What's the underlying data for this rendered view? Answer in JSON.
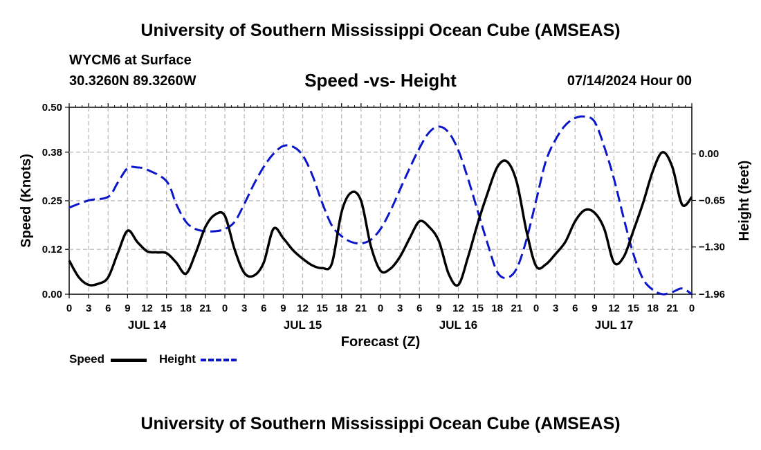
{
  "page": {
    "title": "University of Southern Mississippi Ocean Cube (AMSEAS)",
    "footer_title": "University of Southern Mississippi Ocean Cube (AMSEAS)",
    "station": "WYCM6 at Surface",
    "latlon": "30.3260N  89.3260W",
    "subtitle": "Speed -vs- Height",
    "datetime": "07/14/2024 Hour 00"
  },
  "legend": {
    "speed_label": "Speed",
    "height_label": "Height"
  },
  "chart_data": {
    "type": "line",
    "title": "Speed -vs- Height",
    "xlabel": "Forecast (Z)",
    "ylabel": "Speed (Knots)",
    "y2label": "Height (feet)",
    "xlim": [
      0,
      96
    ],
    "ylim": [
      0,
      0.5
    ],
    "y2lim": [
      -1.96,
      0.65
    ],
    "x_ticks": [
      0,
      3,
      6,
      9,
      12,
      15,
      18,
      21,
      24,
      27,
      30,
      33,
      36,
      39,
      42,
      45,
      48,
      51,
      54,
      57,
      60,
      63,
      66,
      69,
      72,
      75,
      78,
      81,
      84,
      87,
      90,
      93,
      96
    ],
    "x_tick_labels": [
      "0",
      "3",
      "6",
      "9",
      "12",
      "15",
      "18",
      "21",
      "0",
      "3",
      "6",
      "9",
      "12",
      "15",
      "18",
      "21",
      "0",
      "3",
      "6",
      "9",
      "12",
      "15",
      "18",
      "21",
      "0",
      "3",
      "6",
      "9",
      "12",
      "15",
      "18",
      "21",
      "0"
    ],
    "date_labels": [
      {
        "x": 12,
        "label": "JUL 14"
      },
      {
        "x": 36,
        "label": "JUL 15"
      },
      {
        "x": 60,
        "label": "JUL 16"
      },
      {
        "x": 84,
        "label": "JUL 17"
      }
    ],
    "y_ticks": [
      0.0,
      0.12,
      0.25,
      0.38,
      0.5
    ],
    "y_tick_labels": [
      "0.00",
      "0.12",
      "0.25",
      "0.38",
      "0.50"
    ],
    "y2_ticks": [
      -1.96,
      -1.3,
      -0.65,
      0.0
    ],
    "y2_tick_labels": [
      "-1.96",
      "-1.30",
      "-0.65",
      "0.00"
    ],
    "grid": true,
    "series": [
      {
        "name": "Speed",
        "axis": "left",
        "color": "#000000",
        "style": "solid",
        "x": [
          0,
          1.5,
          3,
          4.5,
          6,
          7.5,
          9,
          10.5,
          12,
          13.5,
          15,
          16.5,
          18,
          19.5,
          21,
          22.5,
          24,
          25.5,
          27,
          28.5,
          30,
          31.5,
          33,
          34.5,
          36,
          37.5,
          39,
          40.5,
          42,
          43.5,
          45,
          46.5,
          48,
          49.5,
          51,
          52.5,
          54,
          55.5,
          57,
          58.5,
          60,
          61.5,
          63,
          64.5,
          66,
          67.5,
          69,
          70.5,
          72,
          73.5,
          75,
          76.5,
          78,
          79.5,
          81,
          82.5,
          84,
          85.5,
          87,
          88.5,
          90,
          91.5,
          93,
          94.5,
          96
        ],
        "values": [
          0.09,
          0.045,
          0.025,
          0.028,
          0.045,
          0.11,
          0.17,
          0.14,
          0.115,
          0.112,
          0.11,
          0.085,
          0.055,
          0.11,
          0.18,
          0.213,
          0.21,
          0.12,
          0.057,
          0.05,
          0.085,
          0.175,
          0.15,
          0.118,
          0.095,
          0.077,
          0.07,
          0.082,
          0.22,
          0.272,
          0.25,
          0.13,
          0.063,
          0.068,
          0.1,
          0.15,
          0.195,
          0.18,
          0.142,
          0.055,
          0.025,
          0.1,
          0.19,
          0.27,
          0.34,
          0.355,
          0.3,
          0.17,
          0.075,
          0.08,
          0.108,
          0.14,
          0.195,
          0.225,
          0.218,
          0.175,
          0.085,
          0.1,
          0.17,
          0.245,
          0.33,
          0.38,
          0.34,
          0.24,
          0.26
        ]
      },
      {
        "name": "Height",
        "axis": "right",
        "color": "#0a16c8",
        "style": "dashed",
        "x": [
          0,
          3,
          6,
          7.5,
          9,
          10.5,
          12,
          15,
          16.5,
          18,
          19.5,
          21,
          22.5,
          24,
          25.5,
          27,
          28.5,
          30,
          31.5,
          33,
          34.5,
          36,
          37.5,
          39,
          40.5,
          42,
          43.5,
          45,
          46.5,
          48,
          49.5,
          51,
          52.5,
          54,
          55.5,
          57,
          58.5,
          60,
          61.5,
          63,
          64.5,
          66,
          67.5,
          69,
          70.5,
          72,
          73.5,
          75,
          76.5,
          78,
          79.5,
          81,
          82.5,
          84,
          85.5,
          87,
          88.5,
          90,
          91.5,
          93,
          94.5,
          96
        ],
        "values": [
          -0.75,
          -0.65,
          -0.6,
          -0.4,
          -0.2,
          -0.19,
          -0.22,
          -0.38,
          -0.7,
          -0.95,
          -1.05,
          -1.08,
          -1.08,
          -1.05,
          -0.95,
          -0.7,
          -0.42,
          -0.18,
          0.0,
          0.11,
          0.1,
          -0.02,
          -0.3,
          -0.68,
          -1.0,
          -1.15,
          -1.23,
          -1.25,
          -1.2,
          -1.05,
          -0.8,
          -0.5,
          -0.2,
          0.08,
          0.3,
          0.38,
          0.3,
          0.05,
          -0.35,
          -0.8,
          -1.25,
          -1.65,
          -1.73,
          -1.6,
          -1.2,
          -0.65,
          -0.1,
          0.2,
          0.4,
          0.5,
          0.52,
          0.45,
          0.1,
          -0.35,
          -0.9,
          -1.4,
          -1.75,
          -1.9,
          -1.96,
          -1.93,
          -1.88,
          -1.96
        ]
      }
    ]
  }
}
